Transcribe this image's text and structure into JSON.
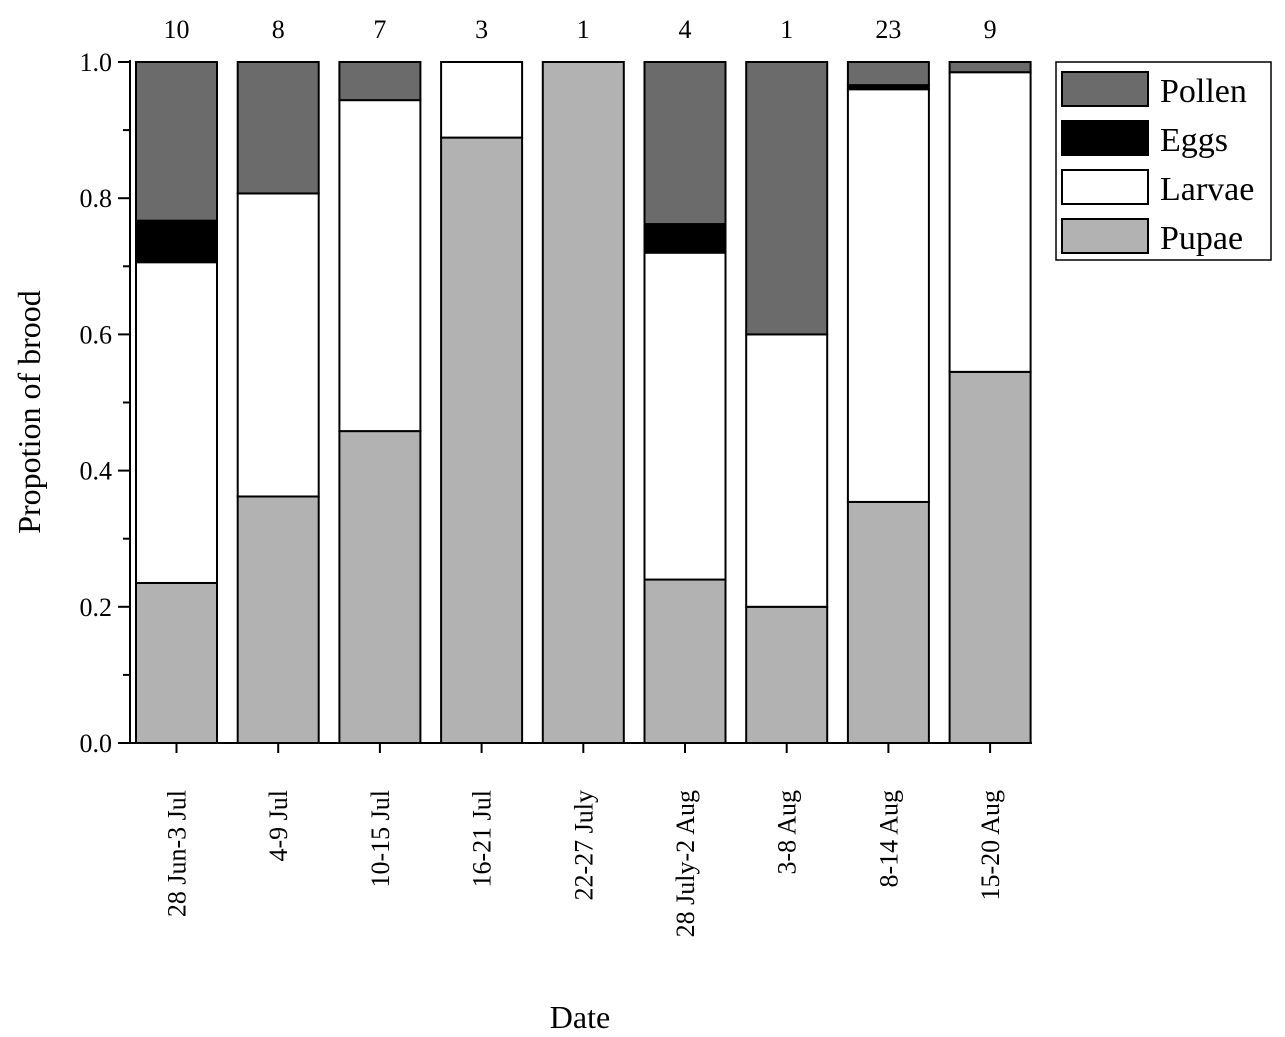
{
  "chart_data": {
    "type": "bar",
    "stacked": true,
    "xlabel": "Date",
    "ylabel": "Propotion of brood",
    "ylim": [
      0,
      1.0
    ],
    "yticks": [
      "0.0",
      "0.2",
      "0.4",
      "0.6",
      "0.8",
      "1.0"
    ],
    "ytick_values": [
      0,
      0.2,
      0.4,
      0.6,
      0.8,
      1.0
    ],
    "categories": [
      "28 Jun-3 Jul",
      "4-9 Jul",
      "10-15 Jul",
      "16-21 Jul",
      "22-27 July",
      "28 July-2 Aug",
      "3-8 Aug",
      "8-14 Aug",
      "15-20 Aug"
    ],
    "sample_sizes": [
      "10",
      "8",
      "7",
      "3",
      "1",
      "4",
      "1",
      "23",
      "9"
    ],
    "series": [
      {
        "name": "Pupae",
        "color": "#b2b2b2",
        "values": [
          0.235,
          0.362,
          0.458,
          0.889,
          1.0,
          0.24,
          0.2,
          0.354,
          0.545
        ]
      },
      {
        "name": "Larvae",
        "color": "#ffffff",
        "values": [
          0.471,
          0.445,
          0.486,
          0.111,
          0.0,
          0.48,
          0.4,
          0.606,
          0.44
        ]
      },
      {
        "name": "Eggs",
        "color": "#000000",
        "values": [
          0.061,
          0.0,
          0.0,
          0.0,
          0.0,
          0.042,
          0.0,
          0.006,
          0.0
        ]
      },
      {
        "name": "Pollen",
        "color": "#6b6b6b",
        "values": [
          0.233,
          0.193,
          0.056,
          0.0,
          0.0,
          0.238,
          0.4,
          0.034,
          0.015
        ]
      }
    ],
    "legend_order": [
      "Pollen",
      "Eggs",
      "Larvae",
      "Pupae"
    ],
    "legend_position": "top-right",
    "grid": false
  }
}
